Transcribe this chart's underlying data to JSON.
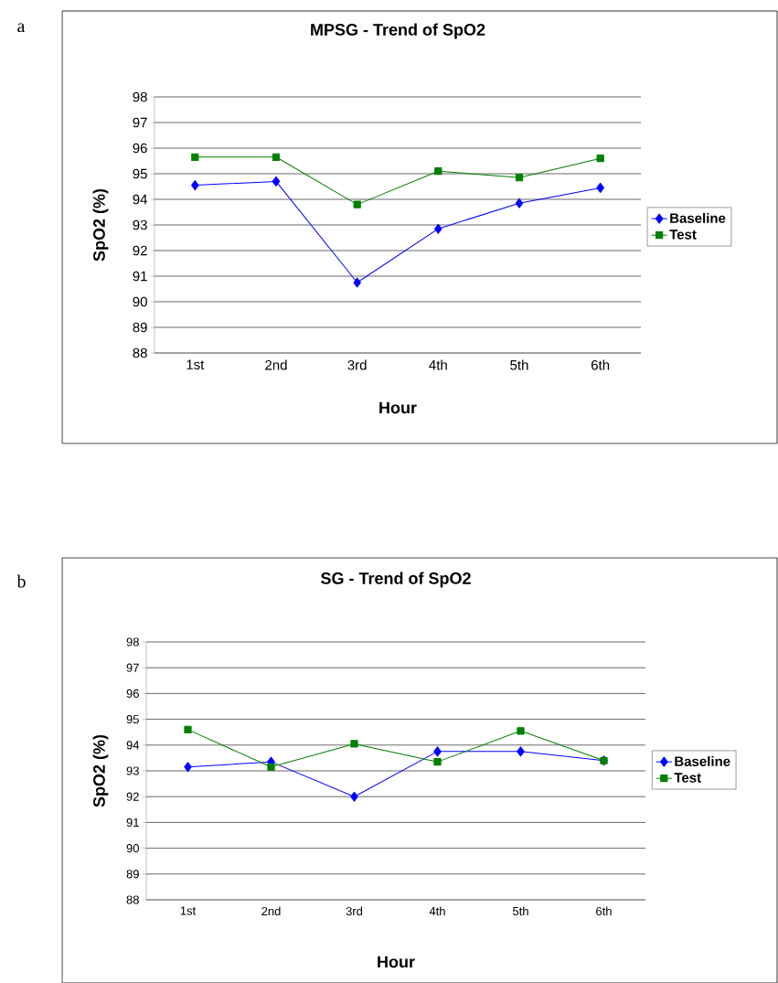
{
  "chart_data": [
    {
      "type": "line",
      "title": "MPSG - Trend of SpO2",
      "xlabel": "Hour",
      "ylabel": "SpO2 (%)",
      "annotations": [
        "a"
      ],
      "categories": [
        "1st",
        "2nd",
        "3rd",
        "4th",
        "5th",
        "6th"
      ],
      "series": [
        {
          "name": "Baseline",
          "color": "#0000ff",
          "marker": "diamond",
          "values": [
            94.55,
            94.7,
            90.75,
            92.85,
            93.85,
            94.45
          ]
        },
        {
          "name": "Test",
          "color": "#008000",
          "marker": "square",
          "values": [
            95.65,
            95.65,
            93.8,
            95.1,
            94.85,
            95.6
          ]
        }
      ],
      "ylim": [
        88,
        98
      ],
      "yticks": [
        88,
        89,
        90,
        91,
        92,
        93,
        94,
        95,
        96,
        97,
        98
      ],
      "grid": "y",
      "legend": "right"
    },
    {
      "type": "line",
      "title": "SG - Trend of SpO2",
      "xlabel": "Hour",
      "ylabel": "SpO2 (%)",
      "annotations": [
        "b"
      ],
      "categories": [
        "1st",
        "2nd",
        "3rd",
        "4th",
        "5th",
        "6th"
      ],
      "series": [
        {
          "name": "Baseline",
          "color": "#0000ff",
          "marker": "diamond",
          "values": [
            93.15,
            93.35,
            92.0,
            93.75,
            93.75,
            93.4
          ]
        },
        {
          "name": "Test",
          "color": "#008000",
          "marker": "square",
          "values": [
            94.6,
            93.15,
            94.05,
            93.35,
            94.55,
            93.4
          ]
        }
      ],
      "ylim": [
        88,
        98
      ],
      "yticks": [
        88,
        89,
        90,
        91,
        92,
        93,
        94,
        95,
        96,
        97,
        98
      ],
      "grid": "y",
      "legend": "right"
    }
  ]
}
